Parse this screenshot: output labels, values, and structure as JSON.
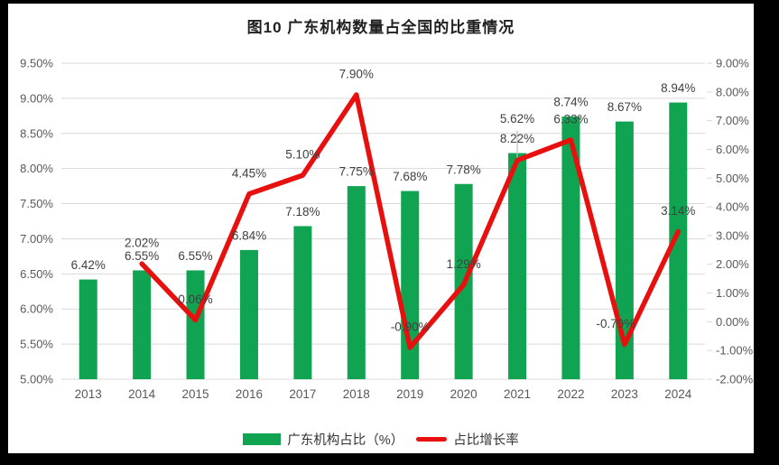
{
  "colors": {
    "bar": "#10A351",
    "line": "#E8100F",
    "grid": "#D9D9D9",
    "axis_text": "#595959",
    "label_text": "#404040",
    "leader": "#BFBFBF",
    "panel_bg": "#FFFFFF",
    "frame_bg": "#000000"
  },
  "chart_data": {
    "type": "bar+line",
    "title": "图10  广东机构数量占全国的比重情况",
    "categories": [
      "2013",
      "2014",
      "2015",
      "2016",
      "2017",
      "2018",
      "2019",
      "2020",
      "2021",
      "2022",
      "2023",
      "2024"
    ],
    "series": [
      {
        "name": "广东机构占比（%）",
        "type": "bar",
        "axis": "left",
        "values": [
          6.42,
          6.55,
          6.55,
          6.84,
          7.18,
          7.75,
          7.68,
          7.78,
          8.22,
          8.74,
          8.67,
          8.94
        ],
        "labels": [
          "6.42%",
          "6.55%",
          "6.55%",
          "6.84%",
          "7.18%",
          "7.75%",
          "7.68%",
          "7.78%",
          "8.22%",
          "8.74%",
          "8.67%",
          "8.94%"
        ]
      },
      {
        "name": "占比增长率",
        "type": "line",
        "axis": "right",
        "start_category": "2014",
        "values": [
          2.02,
          0.06,
          4.45,
          5.1,
          7.9,
          -0.9,
          1.29,
          5.62,
          6.33,
          -0.79,
          3.14
        ],
        "labels": [
          "2.02%",
          "0.06%",
          "4.45%",
          "5.10%",
          "7.90%",
          "-0.90%",
          "1.29%",
          "5.62%",
          "6.33%",
          "-0.79%",
          "3.14%"
        ]
      }
    ],
    "left_axis": {
      "min": 5.0,
      "max": 9.5,
      "step": 0.5,
      "ticks_top_to_bottom": [
        "9.50%",
        "9.00%",
        "8.50%",
        "8.00%",
        "7.50%",
        "7.00%",
        "6.50%",
        "6.00%",
        "5.50%",
        "5.00%"
      ]
    },
    "right_axis": {
      "min": -2.0,
      "max": 9.0,
      "step": 1.0,
      "ticks_top_to_bottom": [
        "9.00%",
        "8.00%",
        "7.00%",
        "6.00%",
        "5.00%",
        "4.00%",
        "3.00%",
        "2.00%",
        "1.00%",
        "0.00%",
        "-1.00%",
        "-2.00%"
      ]
    },
    "grid": true,
    "legend_position": "bottom"
  }
}
